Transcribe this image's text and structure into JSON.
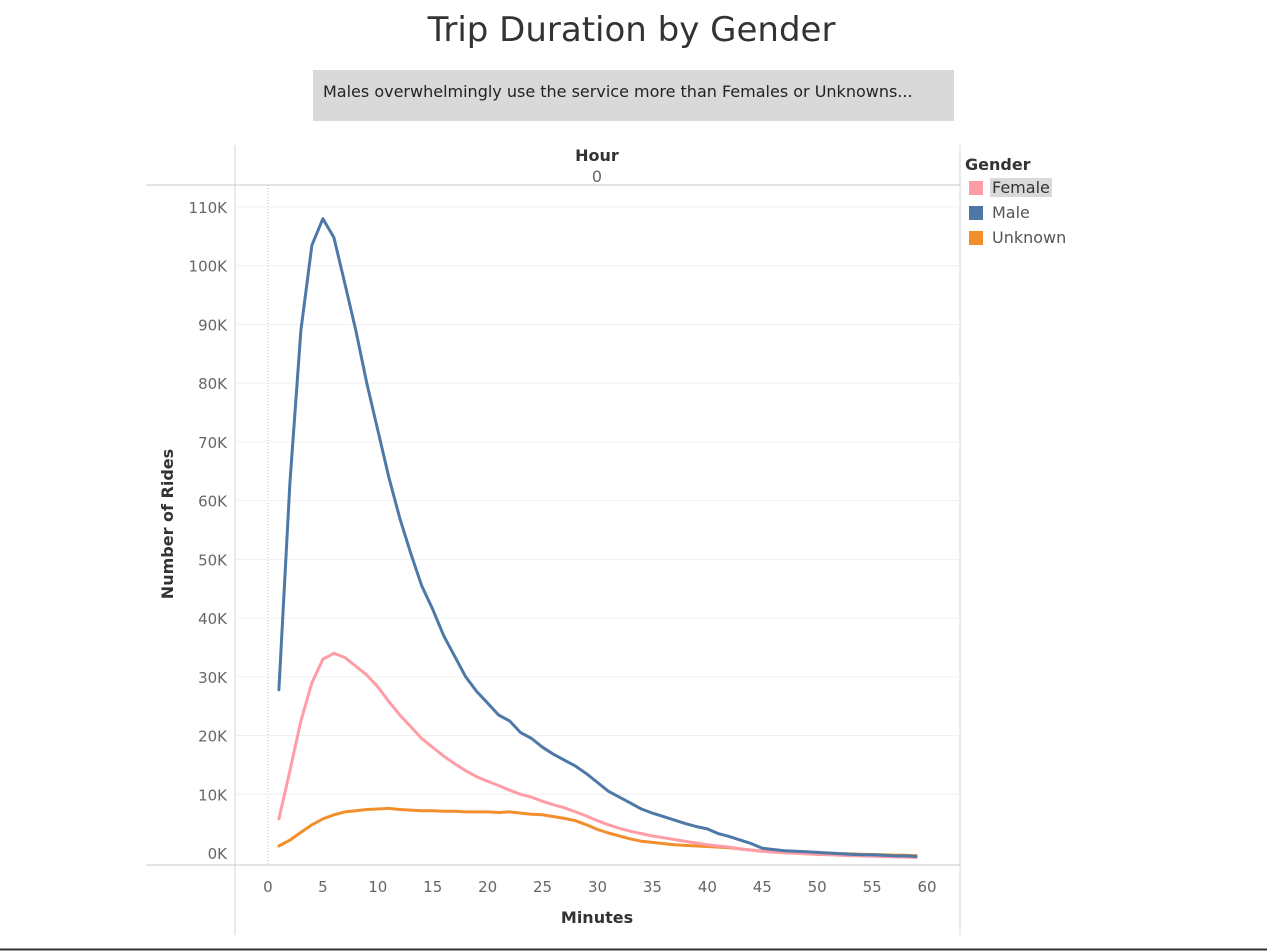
{
  "title": "Trip Duration by Gender",
  "caption": "Males overwhelmingly use the service more than Females or Unknowns...",
  "legend": {
    "title": "Gender",
    "items": [
      {
        "label": "Female",
        "color": "#ff9da7",
        "selected": true
      },
      {
        "label": "Male",
        "color": "#4e79a7",
        "selected": false
      },
      {
        "label": "Unknown",
        "color": "#f28e2b",
        "selected": false
      }
    ]
  },
  "chart_data": {
    "type": "line",
    "column_header": "Hour",
    "column_value": "0",
    "xlabel": "Minutes",
    "ylabel": "Number of Rides",
    "xlim": [
      -3,
      63
    ],
    "ylim": [
      -2000,
      110000
    ],
    "x_ticks": [
      0,
      5,
      10,
      15,
      20,
      25,
      30,
      35,
      40,
      45,
      50,
      55,
      60
    ],
    "x_tick_labels": [
      "0",
      "5",
      "10",
      "15",
      "20",
      "25",
      "30",
      "35",
      "40",
      "45",
      "50",
      "55",
      "60"
    ],
    "y_ticks": [
      0,
      10000,
      20000,
      30000,
      40000,
      50000,
      60000,
      70000,
      80000,
      90000,
      100000,
      110000
    ],
    "y_tick_labels": [
      "0K",
      "10K",
      "20K",
      "30K",
      "40K",
      "50K",
      "60K",
      "70K",
      "80K",
      "90K",
      "100K",
      "110K"
    ],
    "grid": true,
    "legend_position": "right",
    "series": [
      {
        "name": "Male",
        "color": "#4e79a7",
        "points": [
          [
            1,
            27800
          ],
          [
            2,
            63000
          ],
          [
            3,
            89000
          ],
          [
            4,
            103500
          ],
          [
            5,
            108000
          ],
          [
            6,
            104800
          ],
          [
            7,
            97000
          ],
          [
            8,
            89000
          ],
          [
            9,
            80000
          ],
          [
            10,
            72000
          ],
          [
            11,
            64000
          ],
          [
            12,
            57000
          ],
          [
            13,
            51000
          ],
          [
            14,
            45500
          ],
          [
            15,
            41500
          ],
          [
            16,
            37000
          ],
          [
            17,
            33500
          ],
          [
            18,
            30000
          ],
          [
            19,
            27500
          ],
          [
            20,
            25500
          ],
          [
            21,
            23500
          ],
          [
            22,
            22500
          ],
          [
            23,
            20500
          ],
          [
            24,
            19500
          ],
          [
            25,
            18000
          ],
          [
            26,
            16800
          ],
          [
            27,
            15800
          ],
          [
            28,
            14800
          ],
          [
            29,
            13500
          ],
          [
            30,
            12000
          ],
          [
            31,
            10500
          ],
          [
            32,
            9500
          ],
          [
            33,
            8500
          ],
          [
            34,
            7500
          ],
          [
            35,
            6800
          ],
          [
            36,
            6200
          ],
          [
            37,
            5600
          ],
          [
            38,
            5000
          ],
          [
            39,
            4500
          ],
          [
            40,
            4100
          ],
          [
            41,
            3300
          ],
          [
            42,
            2800
          ],
          [
            43,
            2200
          ],
          [
            44,
            1600
          ],
          [
            45,
            800
          ],
          [
            46,
            600
          ],
          [
            47,
            400
          ],
          [
            48,
            300
          ],
          [
            49,
            200
          ],
          [
            50,
            100
          ],
          [
            51,
            0
          ],
          [
            52,
            -100
          ],
          [
            53,
            -200
          ],
          [
            54,
            -300
          ],
          [
            55,
            -300
          ],
          [
            56,
            -400
          ],
          [
            57,
            -500
          ],
          [
            58,
            -500
          ],
          [
            59,
            -600
          ]
        ]
      },
      {
        "name": "Female",
        "color": "#ff9da7",
        "points": [
          [
            1,
            5800
          ],
          [
            2,
            14000
          ],
          [
            3,
            22500
          ],
          [
            4,
            29000
          ],
          [
            5,
            33000
          ],
          [
            6,
            34000
          ],
          [
            7,
            33300
          ],
          [
            8,
            31800
          ],
          [
            9,
            30300
          ],
          [
            10,
            28300
          ],
          [
            11,
            25800
          ],
          [
            12,
            23500
          ],
          [
            13,
            21500
          ],
          [
            14,
            19500
          ],
          [
            15,
            18000
          ],
          [
            16,
            16500
          ],
          [
            17,
            15200
          ],
          [
            18,
            14000
          ],
          [
            19,
            13000
          ],
          [
            20,
            12200
          ],
          [
            21,
            11500
          ],
          [
            22,
            10700
          ],
          [
            23,
            10000
          ],
          [
            24,
            9500
          ],
          [
            25,
            8800
          ],
          [
            26,
            8200
          ],
          [
            27,
            7700
          ],
          [
            28,
            7000
          ],
          [
            29,
            6300
          ],
          [
            30,
            5500
          ],
          [
            31,
            4800
          ],
          [
            32,
            4200
          ],
          [
            33,
            3700
          ],
          [
            34,
            3300
          ],
          [
            35,
            2900
          ],
          [
            36,
            2600
          ],
          [
            37,
            2300
          ],
          [
            38,
            2000
          ],
          [
            39,
            1700
          ],
          [
            40,
            1400
          ],
          [
            41,
            1200
          ],
          [
            42,
            1000
          ],
          [
            43,
            700
          ],
          [
            44,
            500
          ],
          [
            45,
            300
          ],
          [
            46,
            150
          ],
          [
            47,
            50
          ],
          [
            48,
            -50
          ],
          [
            49,
            -150
          ],
          [
            50,
            -250
          ],
          [
            51,
            -300
          ],
          [
            52,
            -400
          ],
          [
            53,
            -450
          ],
          [
            54,
            -500
          ],
          [
            55,
            -550
          ],
          [
            56,
            -600
          ],
          [
            57,
            -650
          ],
          [
            58,
            -700
          ],
          [
            59,
            -750
          ]
        ]
      },
      {
        "name": "Unknown",
        "color": "#f28e2b",
        "points": [
          [
            1,
            1200
          ],
          [
            2,
            2200
          ],
          [
            3,
            3500
          ],
          [
            4,
            4800
          ],
          [
            5,
            5800
          ],
          [
            6,
            6500
          ],
          [
            7,
            7000
          ],
          [
            8,
            7200
          ],
          [
            9,
            7400
          ],
          [
            10,
            7500
          ],
          [
            11,
            7600
          ],
          [
            12,
            7400
          ],
          [
            13,
            7300
          ],
          [
            14,
            7200
          ],
          [
            15,
            7200
          ],
          [
            16,
            7100
          ],
          [
            17,
            7100
          ],
          [
            18,
            7000
          ],
          [
            19,
            7000
          ],
          [
            20,
            7000
          ],
          [
            21,
            6900
          ],
          [
            22,
            7000
          ],
          [
            23,
            6800
          ],
          [
            24,
            6600
          ],
          [
            25,
            6500
          ],
          [
            26,
            6200
          ],
          [
            27,
            5900
          ],
          [
            28,
            5500
          ],
          [
            29,
            4800
          ],
          [
            30,
            4000
          ],
          [
            31,
            3400
          ],
          [
            32,
            2900
          ],
          [
            33,
            2400
          ],
          [
            34,
            2000
          ],
          [
            35,
            1800
          ],
          [
            36,
            1600
          ],
          [
            37,
            1400
          ],
          [
            38,
            1300
          ],
          [
            39,
            1200
          ],
          [
            40,
            1100
          ],
          [
            41,
            1000
          ],
          [
            42,
            900
          ],
          [
            43,
            700
          ],
          [
            44,
            500
          ],
          [
            45,
            300
          ],
          [
            46,
            200
          ],
          [
            47,
            150
          ],
          [
            48,
            100
          ],
          [
            49,
            50
          ],
          [
            50,
            0
          ],
          [
            51,
            -50
          ],
          [
            52,
            -100
          ],
          [
            53,
            -150
          ],
          [
            54,
            -200
          ],
          [
            55,
            -250
          ],
          [
            56,
            -300
          ],
          [
            57,
            -350
          ],
          [
            58,
            -400
          ],
          [
            59,
            -450
          ]
        ]
      }
    ]
  }
}
